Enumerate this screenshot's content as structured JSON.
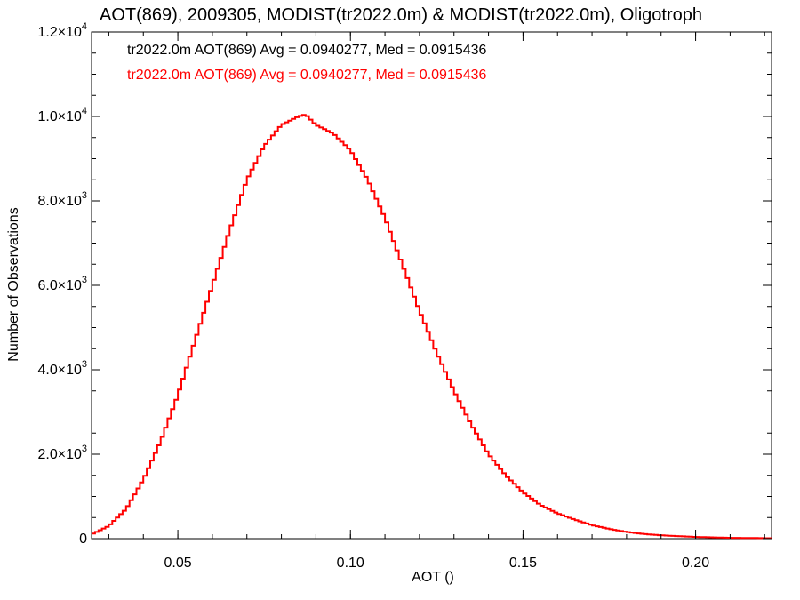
{
  "chart_data": {
    "type": "histogram",
    "title": "AOT(869), 2009305, MODIST(tr2022.0m) & MODIST(tr2022.0m), Oligotroph",
    "xlabel": "AOT ()",
    "ylabel": "Number of Observations",
    "xlim": [
      0.025,
      0.222
    ],
    "ylim": [
      0,
      12000
    ],
    "x_ticks": [
      {
        "value": 0.05,
        "label": "0.05"
      },
      {
        "value": 0.1,
        "label": "0.10"
      },
      {
        "value": 0.15,
        "label": "0.15"
      },
      {
        "value": 0.2,
        "label": "0.20"
      }
    ],
    "y_ticks": [
      {
        "value": 0,
        "mant": "0",
        "exp": ""
      },
      {
        "value": 2000,
        "mant": "2.0×10",
        "exp": "3"
      },
      {
        "value": 4000,
        "mant": "4.0×10",
        "exp": "3"
      },
      {
        "value": 6000,
        "mant": "6.0×10",
        "exp": "3"
      },
      {
        "value": 8000,
        "mant": "8.0×10",
        "exp": "3"
      },
      {
        "value": 10000,
        "mant": "1.0×10",
        "exp": "4"
      },
      {
        "value": 12000,
        "mant": "1.2×10",
        "exp": "4"
      }
    ],
    "legend": [
      {
        "text": "tr2022.0m AOT(869) Avg = 0.0940277, Med = 0.0915436",
        "color": "#000000"
      },
      {
        "text": "tr2022.0m AOT(869) Avg = 0.0940277, Med = 0.0915436",
        "color": "#ff0000"
      }
    ],
    "series": [
      {
        "color": "#ff0000",
        "points": [
          [
            0.025,
            100
          ],
          [
            0.03,
            300
          ],
          [
            0.035,
            700
          ],
          [
            0.04,
            1400
          ],
          [
            0.045,
            2300
          ],
          [
            0.05,
            3400
          ],
          [
            0.055,
            4700
          ],
          [
            0.06,
            6000
          ],
          [
            0.065,
            7300
          ],
          [
            0.07,
            8500
          ],
          [
            0.075,
            9300
          ],
          [
            0.08,
            9800
          ],
          [
            0.085,
            10000
          ],
          [
            0.087,
            10050
          ],
          [
            0.09,
            9800
          ],
          [
            0.095,
            9600
          ],
          [
            0.1,
            9200
          ],
          [
            0.105,
            8500
          ],
          [
            0.11,
            7600
          ],
          [
            0.115,
            6500
          ],
          [
            0.12,
            5400
          ],
          [
            0.125,
            4400
          ],
          [
            0.13,
            3500
          ],
          [
            0.135,
            2700
          ],
          [
            0.14,
            2000
          ],
          [
            0.145,
            1500
          ],
          [
            0.15,
            1100
          ],
          [
            0.155,
            800
          ],
          [
            0.16,
            600
          ],
          [
            0.165,
            450
          ],
          [
            0.17,
            320
          ],
          [
            0.175,
            230
          ],
          [
            0.18,
            160
          ],
          [
            0.185,
            110
          ],
          [
            0.19,
            80
          ],
          [
            0.2,
            40
          ],
          [
            0.21,
            20
          ],
          [
            0.222,
            10
          ]
        ]
      }
    ]
  }
}
